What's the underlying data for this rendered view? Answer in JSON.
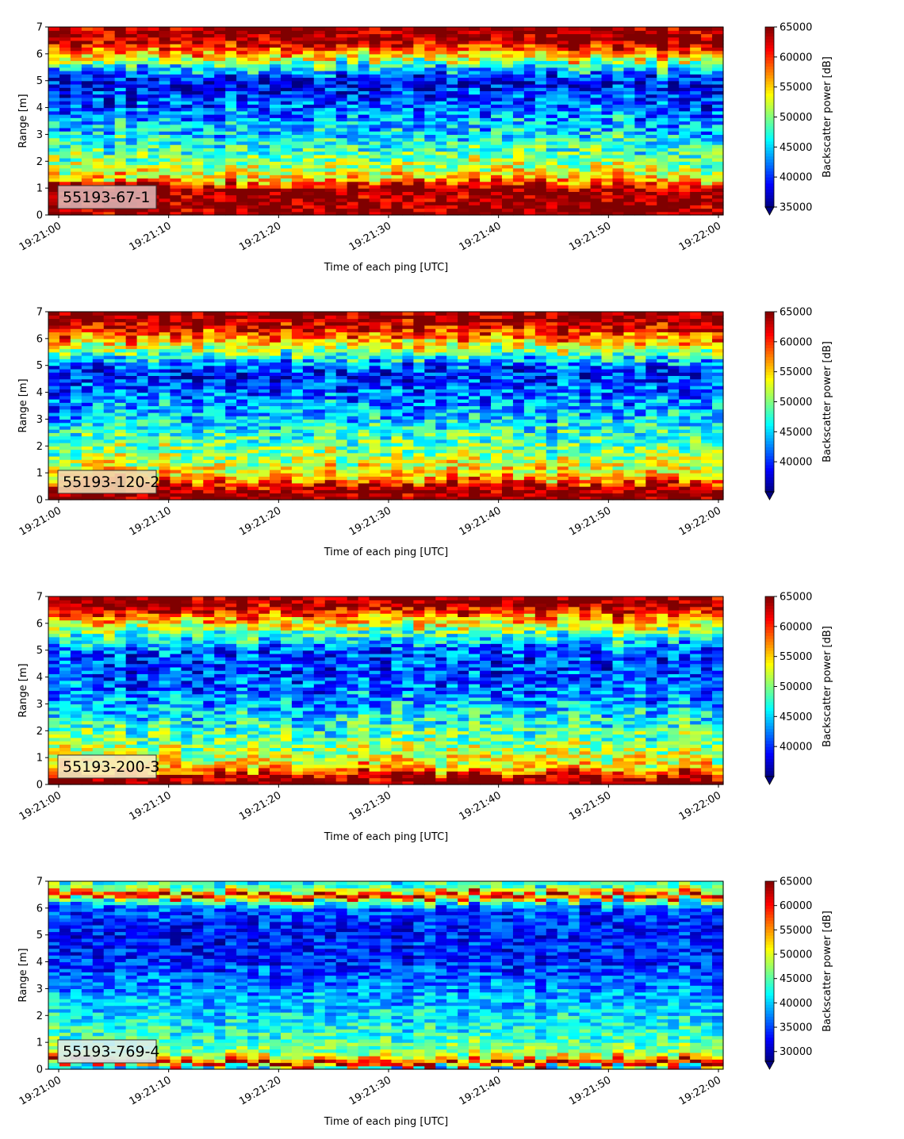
{
  "chart_data": [
    {
      "type": "heatmap",
      "label": "55193-67-1",
      "xlabel": "Time of each ping [UTC]",
      "ylabel": "Range [m]",
      "colorbar_label": "Backscatter power [dB]",
      "x_start": "19:21:00",
      "x_end": "19:22:00",
      "xticks": [
        "19:21:00",
        "19:21:10",
        "19:21:20",
        "19:21:30",
        "19:21:40",
        "19:21:50",
        "19:22:00"
      ],
      "ylim": [
        0,
        7
      ],
      "yticks": [
        0,
        1,
        2,
        3,
        4,
        5,
        6,
        7
      ],
      "clim": [
        35000,
        65000
      ],
      "cticks": [
        35000,
        40000,
        45000,
        50000,
        55000,
        60000,
        65000
      ],
      "profile": [
        {
          "range": 0.15,
          "value": 65000
        },
        {
          "range": 0.35,
          "value": 65000
        },
        {
          "range": 0.75,
          "value": 65000
        },
        {
          "range": 1.05,
          "value": 64500
        },
        {
          "range": 1.25,
          "value": 57000
        },
        {
          "range": 1.6,
          "value": 53000
        },
        {
          "range": 2.2,
          "value": 49500
        },
        {
          "range": 3.0,
          "value": 45500
        },
        {
          "range": 4.0,
          "value": 42000
        },
        {
          "range": 5.0,
          "value": 38500
        },
        {
          "range": 5.45,
          "value": 45000
        },
        {
          "range": 5.8,
          "value": 53000
        },
        {
          "range": 6.1,
          "value": 58000
        },
        {
          "range": 6.5,
          "value": 65000
        },
        {
          "range": 7.0,
          "value": 65000
        }
      ],
      "noise": 5000,
      "label_bg": "#dcb0b0"
    },
    {
      "type": "heatmap",
      "label": "55193-120-2",
      "xlabel": "Time of each ping [UTC]",
      "ylabel": "Range [m]",
      "colorbar_label": "Backscatter power [dB]",
      "x_start": "19:21:00",
      "x_end": "19:22:00",
      "xticks": [
        "19:21:00",
        "19:21:10",
        "19:21:20",
        "19:21:30",
        "19:21:40",
        "19:21:50",
        "19:22:00"
      ],
      "ylim": [
        0,
        7
      ],
      "yticks": [
        0,
        1,
        2,
        3,
        4,
        5,
        6,
        7
      ],
      "clim": [
        35000,
        65000
      ],
      "cticks": [
        40000,
        45000,
        50000,
        55000,
        60000,
        65000
      ],
      "profile": [
        {
          "range": 0.1,
          "value": 65000
        },
        {
          "range": 0.45,
          "value": 65000
        },
        {
          "range": 0.6,
          "value": 61000
        },
        {
          "range": 0.9,
          "value": 55000
        },
        {
          "range": 1.5,
          "value": 51500
        },
        {
          "range": 2.3,
          "value": 48500
        },
        {
          "range": 3.0,
          "value": 45000
        },
        {
          "range": 4.0,
          "value": 41500
        },
        {
          "range": 4.8,
          "value": 39500
        },
        {
          "range": 5.2,
          "value": 44500
        },
        {
          "range": 5.6,
          "value": 51000
        },
        {
          "range": 6.0,
          "value": 57000
        },
        {
          "range": 6.4,
          "value": 62000
        },
        {
          "range": 6.7,
          "value": 65000
        },
        {
          "range": 7.0,
          "value": 65000
        }
      ],
      "noise": 5000,
      "label_bg": "#f0d8b0"
    },
    {
      "type": "heatmap",
      "label": "55193-200-3",
      "xlabel": "Time of each ping [UTC]",
      "ylabel": "Range [m]",
      "colorbar_label": "Backscatter power [dB]",
      "x_start": "19:21:00",
      "x_end": "19:22:00",
      "xticks": [
        "19:21:00",
        "19:21:10",
        "19:21:20",
        "19:21:30",
        "19:21:40",
        "19:21:50",
        "19:22:00"
      ],
      "ylim": [
        0,
        7
      ],
      "yticks": [
        0,
        1,
        2,
        3,
        4,
        5,
        6,
        7
      ],
      "clim": [
        35000,
        65000
      ],
      "cticks": [
        40000,
        45000,
        50000,
        55000,
        60000,
        65000
      ],
      "profile": [
        {
          "range": 0.1,
          "value": 65000
        },
        {
          "range": 0.3,
          "value": 64000
        },
        {
          "range": 0.5,
          "value": 58000
        },
        {
          "range": 0.9,
          "value": 53000
        },
        {
          "range": 1.6,
          "value": 50000
        },
        {
          "range": 2.4,
          "value": 46500
        },
        {
          "range": 3.2,
          "value": 43000
        },
        {
          "range": 4.2,
          "value": 40500
        },
        {
          "range": 5.0,
          "value": 41000
        },
        {
          "range": 5.5,
          "value": 47000
        },
        {
          "range": 6.0,
          "value": 54000
        },
        {
          "range": 6.4,
          "value": 60000
        },
        {
          "range": 6.7,
          "value": 65000
        },
        {
          "range": 7.0,
          "value": 65000
        }
      ],
      "noise": 5000,
      "label_bg": "#f8ecc0"
    },
    {
      "type": "heatmap",
      "label": "55193-769-4",
      "xlabel": "Time of each ping [UTC]",
      "ylabel": "Range [m]",
      "colorbar_label": "Backscatter power [dB]",
      "x_start": "19:21:00",
      "x_end": "19:22:00",
      "xticks": [
        "19:21:00",
        "19:21:10",
        "19:21:20",
        "19:21:30",
        "19:21:40",
        "19:21:50",
        "19:22:00"
      ],
      "ylim": [
        0,
        7
      ],
      "yticks": [
        0,
        1,
        2,
        3,
        4,
        5,
        6,
        7
      ],
      "clim": [
        28000,
        65000
      ],
      "cticks": [
        30000,
        35000,
        40000,
        45000,
        50000,
        55000,
        60000,
        65000
      ],
      "profile": [
        {
          "range": 0.1,
          "value": 40000
        },
        {
          "range": 0.25,
          "value": 65000
        },
        {
          "range": 0.35,
          "value": 58000
        },
        {
          "range": 0.6,
          "value": 47000
        },
        {
          "range": 1.2,
          "value": 44000
        },
        {
          "range": 2.0,
          "value": 41000
        },
        {
          "range": 3.0,
          "value": 37500
        },
        {
          "range": 4.0,
          "value": 34000
        },
        {
          "range": 5.0,
          "value": 33000
        },
        {
          "range": 6.0,
          "value": 35000
        },
        {
          "range": 6.3,
          "value": 45000
        },
        {
          "range": 6.5,
          "value": 65000
        },
        {
          "range": 6.65,
          "value": 50000
        },
        {
          "range": 7.0,
          "value": 42000
        }
      ],
      "noise": 4500,
      "label_bg": "#d8ecf0"
    }
  ]
}
